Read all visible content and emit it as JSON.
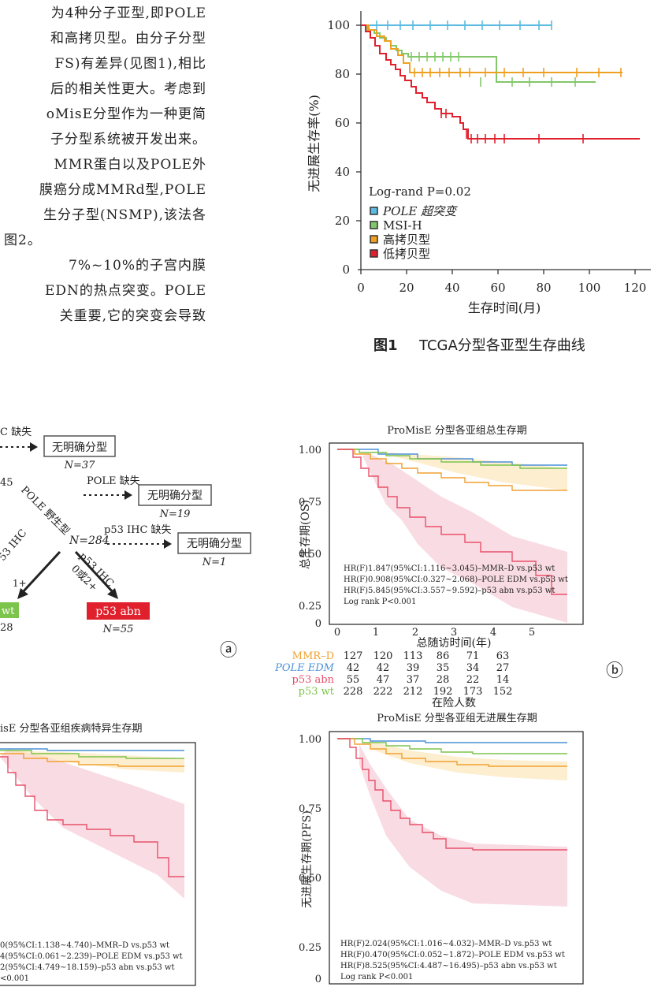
{
  "body_text": {
    "lines": [
      "为4种分子亚型,即POLE",
      "和高拷贝型。由分子分型",
      "FS)有差异(见图1),相比",
      "后的相关性更大。考虑到",
      "oMisE分型作为一种更简",
      "子分型系统被开发出来。",
      "MMR蛋白以及POLE外",
      "膜癌分成MMRd型,POLE",
      "生分子型(NSMP),该法各",
      "图2。",
      "7%~10%的子宫内膜",
      "EDN的热点突变。POLE",
      "关重要,它的突变会导致"
    ]
  },
  "figure1": {
    "caption_num": "图1",
    "caption_text": "TCGA分型各亚型生存曲线",
    "ylabel": "无进展生存率(%)",
    "xlabel": "生存时间(月)",
    "stat": "Log-rand P=0.02",
    "legend": [
      "POLE 超突变",
      "MSI-H",
      "高拷贝型",
      "低拷贝型"
    ],
    "y_ticks": [
      "100",
      "80",
      "60",
      "40",
      "20",
      "0"
    ],
    "x_ticks": [
      "0",
      "20",
      "40",
      "60",
      "80",
      "100",
      "120"
    ]
  },
  "figure2a": {
    "nodes": [
      "无明确分型",
      "N=37",
      "无明确分型",
      "N=19",
      "无明确分型",
      "N=1",
      "p53 abn",
      "N=55",
      "wt",
      "28"
    ],
    "labels": [
      "C 缺失",
      "45",
      "POLE 缺失",
      "POLE 野生型",
      "N=284",
      "p53 IHC 缺失",
      "53 IHC",
      "1+",
      "p53 IHC",
      "0或2+"
    ],
    "panel": "ⓐ"
  },
  "figure2b": {
    "title": "ProMisE 分型各亚组总生存期",
    "ylabel": "总生存期(OS)",
    "xlabel": "总随访时间(年)",
    "y_ticks": [
      "1.00",
      "0.75",
      "0.50",
      "0.25",
      "0"
    ],
    "x_ticks": [
      "0",
      "1",
      "2",
      "3",
      "4",
      "5"
    ],
    "stats": [
      "HR(F)1.847(95%CI:1.116~3.045)–MMR–D vs.p53 wt",
      "HR(F)0.908(95%CI:0.327~2.068)–POLE EDM vs.p53 wt",
      "HR(F)5.845(95%CI:3.557~9.592)–p53 abn vs.p53 wt",
      "Log rank P<0.001"
    ],
    "risk_label": "在险人数",
    "risk_rows": [
      {
        "name": "MMR–D",
        "values": [
          "127",
          "120",
          "113",
          "86",
          "71",
          "63"
        ]
      },
      {
        "name": "POLE EDM",
        "values": [
          "42",
          "42",
          "39",
          "35",
          "34",
          "27"
        ]
      },
      {
        "name": "p53 abn",
        "values": [
          "55",
          "47",
          "37",
          "28",
          "22",
          "14"
        ]
      },
      {
        "name": "p53 wt",
        "values": [
          "228",
          "222",
          "212",
          "192",
          "173",
          "152"
        ]
      }
    ],
    "panel": "ⓑ"
  },
  "figure2c": {
    "title": "isE 分型各亚组疾病特异生存期",
    "stats": [
      "0(95%CI:1.138~4.740)–MMR–D vs.p53 wt",
      "4(95%CI:0.061~2.239)–POLE EDM vs.p53 wt",
      "2(95%CI:4.749~18.159)–p53 abn vs.p53 wt",
      "<0.001"
    ]
  },
  "figure2d": {
    "title": "ProMisE 分型各亚组无进展生存期",
    "ylabel": "无进展生存期(PFS)",
    "y_ticks": [
      "1.00",
      "0.75",
      "0.50",
      "0.25",
      "0"
    ],
    "stats": [
      "HR(F)2.024(95%CI:1.016~4.032)–MMR–D vs.p53 wt",
      "HR(F)0.470(95%CI:0.052~1.872)–POLE EDM vs.p53 wt",
      "HR(F)8.525(95%CI:4.487~16.495)–p53 abn vs.p53 wt",
      "Log rank P<0.001"
    ]
  },
  "colors": {
    "pole": "#5bbbe0",
    "msi": "#82c86a",
    "high": "#f0a020",
    "low": "#e0202c",
    "mmr_d": "#f0a030",
    "pole_edm": "#4a90d9",
    "p53_abn": "#e8506a",
    "p53_wt": "#7cc44c"
  }
}
